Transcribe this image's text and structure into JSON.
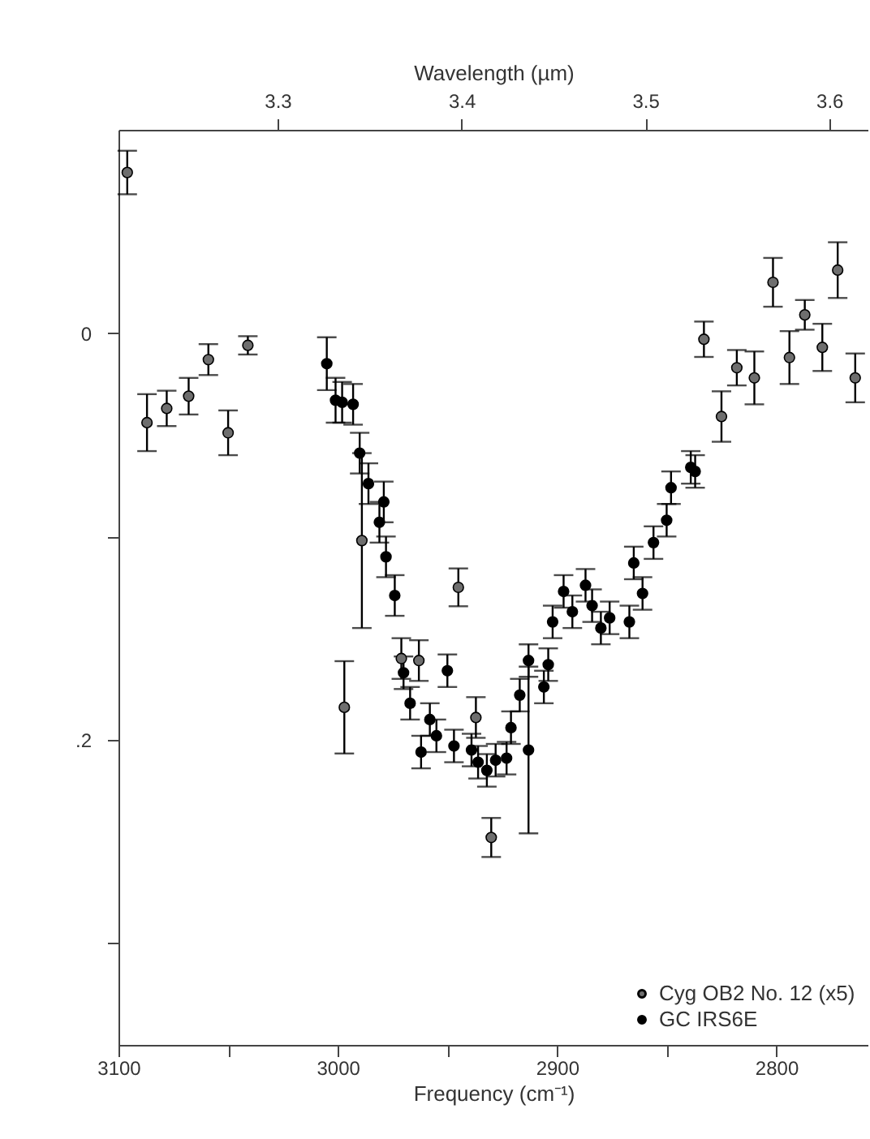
{
  "chart_data": {
    "type": "scatter",
    "xlabel": "Frequency (cm⁻¹)",
    "x2label": "Wavelength (µm)",
    "xlim": [
      3100,
      2758
    ],
    "xticks": [
      3100,
      {
        "value": 3050,
        "label": null
      },
      3000,
      {
        "value": 2950,
        "label": null
      },
      2900,
      {
        "value": 2850,
        "label": null
      },
      2800
    ],
    "x2lim": [
      3.2135,
      3.6213
    ],
    "x2ticks": [
      3.3,
      3.4,
      3.5,
      3.6
    ],
    "ylim": [
      0.35,
      -0.1
    ],
    "yticks": [
      0,
      {
        "value": 0.1,
        "label": null
      },
      {
        "value": 0.2,
        "label": ".2"
      },
      {
        "value": 0.3,
        "label": null
      }
    ],
    "grid": false,
    "legend": "bottom right",
    "marker": "circle",
    "series": [
      {
        "name": "Cyg OB2 No. 12 (x5)",
        "color": "#6e6e6e",
        "x": [
          3096,
          3087,
          3078,
          3068,
          3059,
          3050,
          3041,
          2989,
          2997,
          2971,
          2963,
          2945,
          2937,
          2930,
          2833,
          2825,
          2818,
          2810,
          2801.5,
          2794,
          2787,
          2779,
          2772,
          2764
        ],
        "values": [
          -0.079,
          0.044,
          0.037,
          0.031,
          0.013,
          0.049,
          0.006,
          0.102,
          0.184,
          0.16,
          0.161,
          0.125,
          0.189,
          0.248,
          0.003,
          0.041,
          0.017,
          0.022,
          -0.025,
          0.012,
          -0.009,
          0.007,
          -0.031,
          0.022
        ],
        "errors": [
          0.0107,
          0.014,
          0.0087,
          0.009,
          0.0076,
          0.011,
          0.0045,
          0.043,
          0.0227,
          0.01,
          0.01,
          0.0093,
          0.01,
          0.0096,
          0.0087,
          0.0124,
          0.0087,
          0.013,
          0.012,
          0.013,
          0.0073,
          0.0116,
          0.0137,
          0.012
        ]
      },
      {
        "name": "GC IRS6E",
        "color": "#000000",
        "x": [
          3005,
          3001,
          2998,
          2993,
          2990,
          2986,
          2981,
          2979,
          2978,
          2974,
          2970,
          2967,
          2962,
          2958,
          2955,
          2950,
          2947,
          2939,
          2936,
          2932,
          2928,
          2923,
          2921,
          2917,
          2913,
          2913,
          2906,
          2904,
          2902,
          2897,
          2893,
          2887,
          2884,
          2880,
          2876,
          2867,
          2865,
          2861,
          2856,
          2850,
          2848,
          2839,
          2837
        ],
        "values": [
          0.015,
          0.033,
          0.034,
          0.035,
          0.059,
          0.074,
          0.093,
          0.083,
          0.11,
          0.129,
          0.167,
          0.182,
          0.206,
          0.19,
          0.198,
          0.166,
          0.203,
          0.205,
          0.211,
          0.215,
          0.21,
          0.209,
          0.194,
          0.178,
          0.161,
          0.205,
          0.174,
          0.163,
          0.142,
          0.127,
          0.137,
          0.124,
          0.134,
          0.145,
          0.14,
          0.142,
          0.113,
          0.128,
          0.103,
          0.092,
          0.076,
          0.066,
          0.068
        ],
        "errors": [
          0.013,
          0.011,
          0.01,
          0.01,
          0.01,
          0.01,
          0.01,
          0.01,
          0.01,
          0.01,
          0.008,
          0.008,
          0.008,
          0.008,
          0.008,
          0.008,
          0.008,
          0.008,
          0.008,
          0.008,
          0.008,
          0.008,
          0.008,
          0.008,
          0.008,
          0.041,
          0.008,
          0.008,
          0.008,
          0.008,
          0.008,
          0.008,
          0.008,
          0.008,
          0.008,
          0.008,
          0.008,
          0.008,
          0.008,
          0.008,
          0.008,
          0.008,
          0.008
        ]
      }
    ]
  }
}
